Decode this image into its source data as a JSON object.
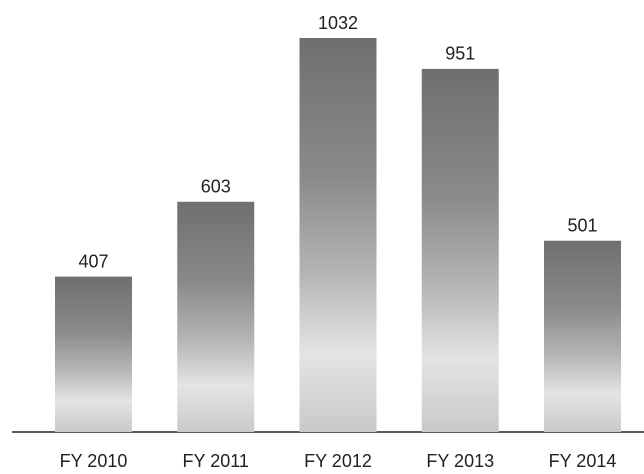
{
  "chart_data": {
    "type": "bar",
    "categories": [
      "FY 2010",
      "FY 2011",
      "FY 2012",
      "FY 2013",
      "FY 2014"
    ],
    "values": [
      407,
      603,
      1032,
      951,
      501
    ]
  }
}
